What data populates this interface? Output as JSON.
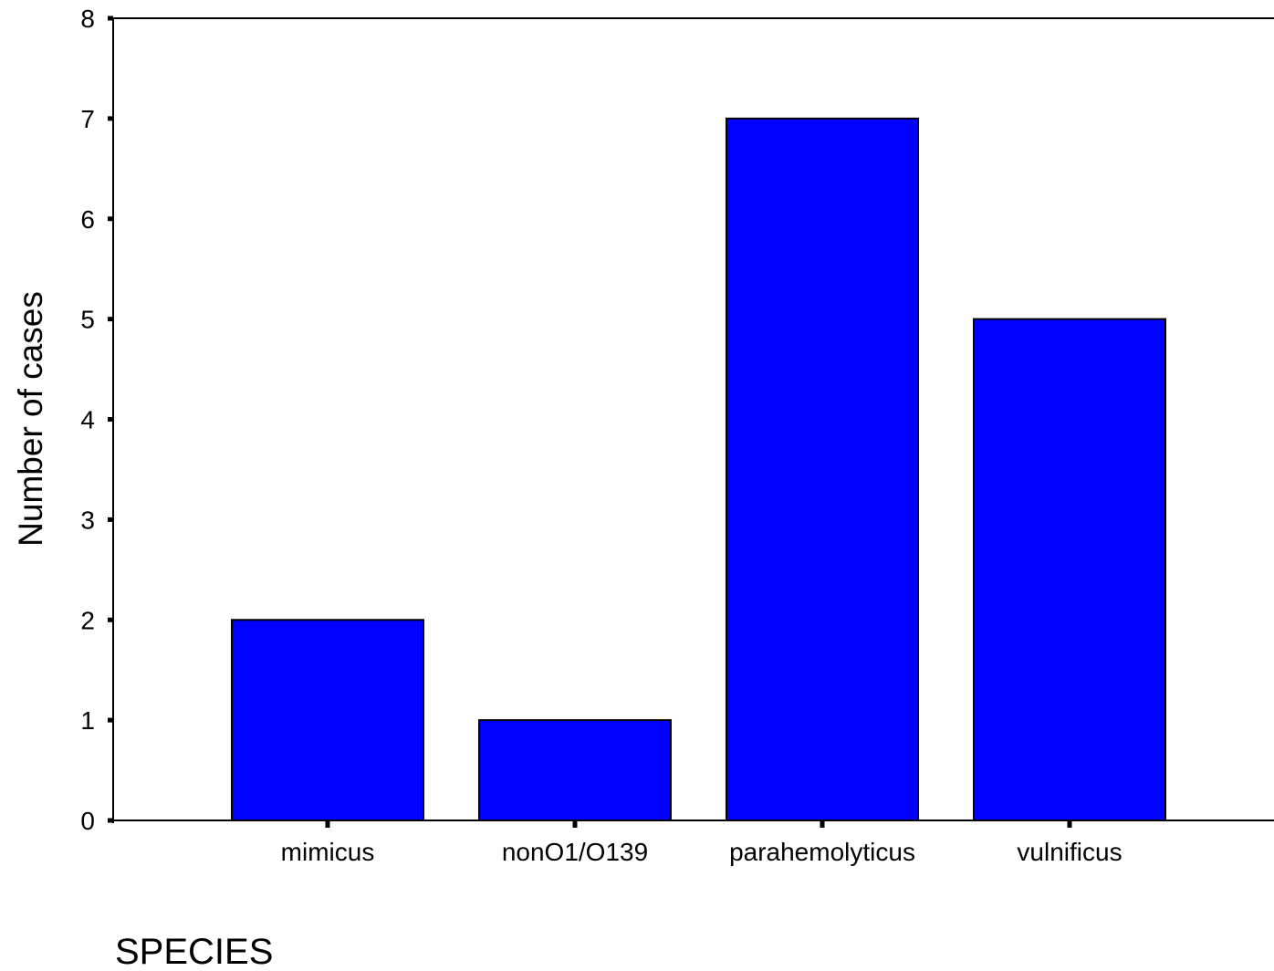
{
  "chart_data": {
    "type": "bar",
    "categories": [
      "mimicus",
      "nonO1/O139",
      "parahemolyticus",
      "vulnificus"
    ],
    "values": [
      2,
      1,
      7,
      5
    ],
    "xlabel": "SPECIES",
    "ylabel": "Number of cases",
    "ylim": [
      0,
      8
    ],
    "yticks": [
      "0",
      "1",
      "2",
      "3",
      "4",
      "5",
      "6",
      "7",
      "8"
    ],
    "grid": false,
    "legend": "none",
    "colors": {
      "bar_fill": "#0000ff",
      "bar_stroke": "#000000",
      "axis": "#000000",
      "background": "#ffffff"
    }
  }
}
